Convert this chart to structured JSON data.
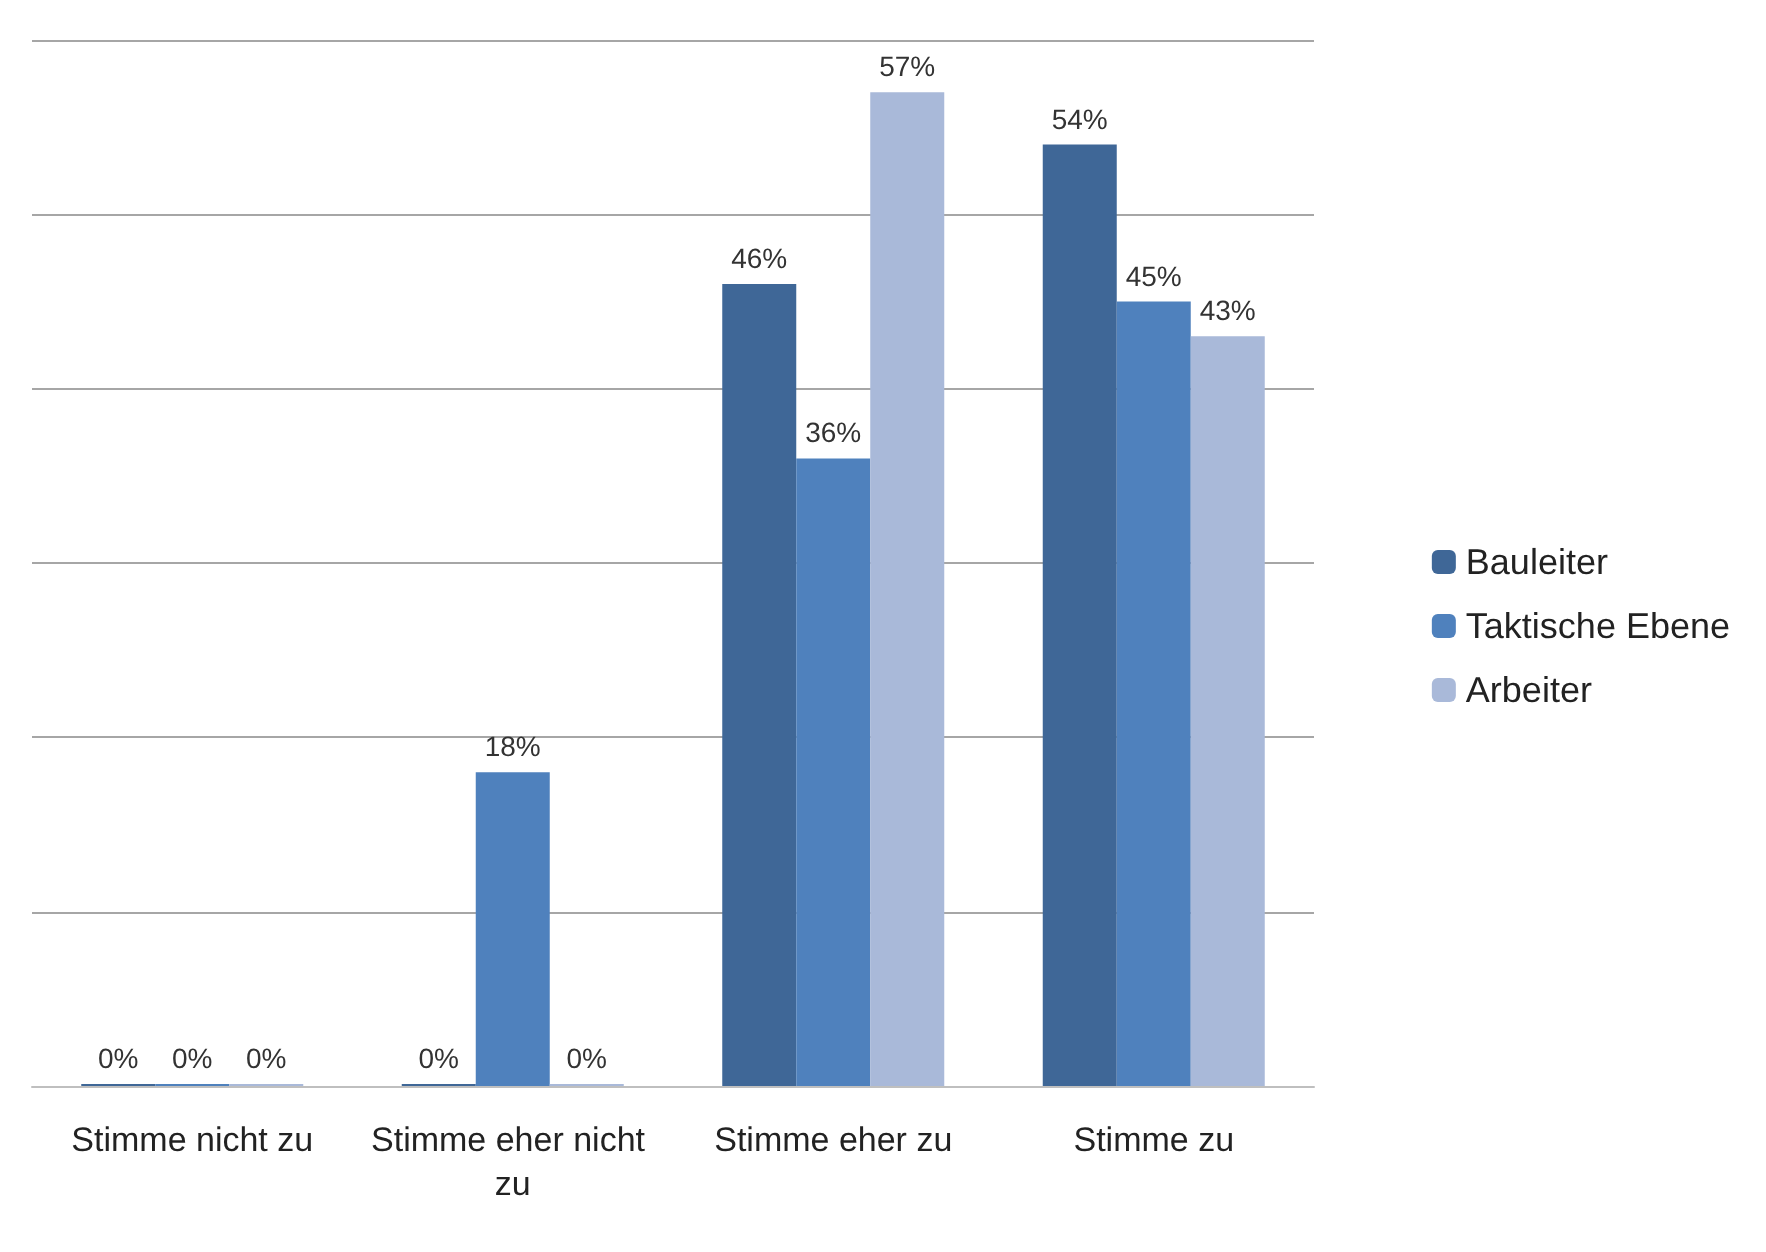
{
  "chart_data": {
    "type": "bar",
    "categories": [
      "Stimme nicht zu",
      "Stimme eher nicht zu",
      "Stimme eher zu",
      "Stimme zu"
    ],
    "series": [
      {
        "name": "Bauleiter",
        "color": "#3f6797",
        "values": [
          0,
          0,
          46,
          54
        ],
        "value_labels": [
          "0%",
          "0%",
          "46%",
          "54%"
        ]
      },
      {
        "name": "Taktische Ebene",
        "color": "#4f81bd",
        "values": [
          0,
          18,
          36,
          45
        ],
        "value_labels": [
          "0%",
          "18%",
          "36%",
          "45%"
        ]
      },
      {
        "name": "Arbeiter",
        "color": "#a9b9d9",
        "values": [
          0,
          0,
          57,
          43
        ],
        "value_labels": [
          "0%",
          "0%",
          "57%",
          "43%"
        ]
      }
    ],
    "ylim": [
      0,
      60
    ],
    "yticks": [
      {
        "value": 0,
        "label": null
      },
      {
        "value": 10,
        "label": null
      },
      {
        "value": 20,
        "label": null
      },
      {
        "value": 30,
        "label": null
      },
      {
        "value": 40,
        "label": null
      },
      {
        "value": 50,
        "label": null
      },
      {
        "value": 60,
        "label": null
      }
    ],
    "tick_labels": "x",
    "grid": "y",
    "legend": "right"
  }
}
